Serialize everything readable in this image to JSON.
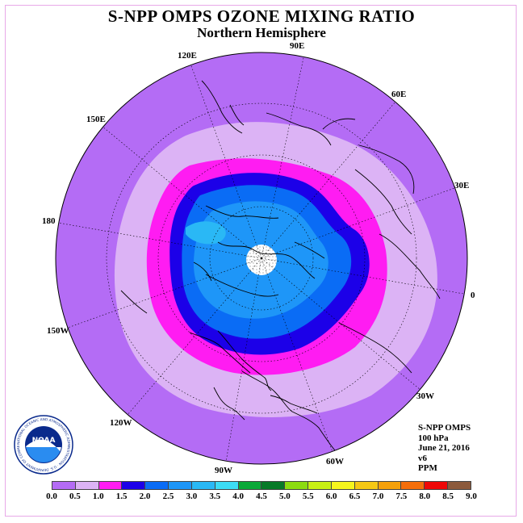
{
  "title": "S-NPP OMPS OZONE MIXING RATIO",
  "subtitle": "Northern Hemisphere",
  "longitude_labels": [
    "90E",
    "60E",
    "30E",
    "0",
    "30W",
    "60W",
    "90W",
    "120W",
    "150W",
    "180",
    "150E",
    "120E"
  ],
  "info": {
    "instrument": "S-NPP OMPS",
    "pressure": "100 hPa",
    "date": "June 21, 2016",
    "version": "v6",
    "units": "PPM"
  },
  "logo": {
    "text": "NOAA",
    "ring_text": "NATIONAL OCEANIC AND ATMOSPHERIC ADMINISTRATION · U.S. DEPARTMENT OF COMMERCE"
  },
  "colorbar": {
    "ticks": [
      "0.0",
      "0.5",
      "1.0",
      "1.5",
      "2.0",
      "2.5",
      "3.0",
      "3.5",
      "4.0",
      "4.5",
      "5.0",
      "5.5",
      "6.0",
      "6.5",
      "7.0",
      "7.5",
      "8.0",
      "8.5",
      "9.0"
    ],
    "colors": [
      "#b46cf5",
      "#dcb3f5",
      "#ff1cf2",
      "#1c00e8",
      "#0a6cf5",
      "#1e96f8",
      "#2ab8f5",
      "#3cdcf5",
      "#0aa838",
      "#087a28",
      "#8cdc10",
      "#c8f014",
      "#f5f51c",
      "#f5c814",
      "#f5a00a",
      "#f56e0a",
      "#ee0808",
      "#8c5a3c"
    ]
  },
  "colors": {
    "band_0_05": "#b46cf5",
    "band_05_10": "#dcb3f5",
    "band_10_15": "#ff1cf2",
    "band_15_20": "#1c00e8",
    "band_20_25": "#0a6cf5",
    "band_25_30": "#1e96f8",
    "band_30_35": "#2ab8f5",
    "no_data": "#ffffff"
  }
}
